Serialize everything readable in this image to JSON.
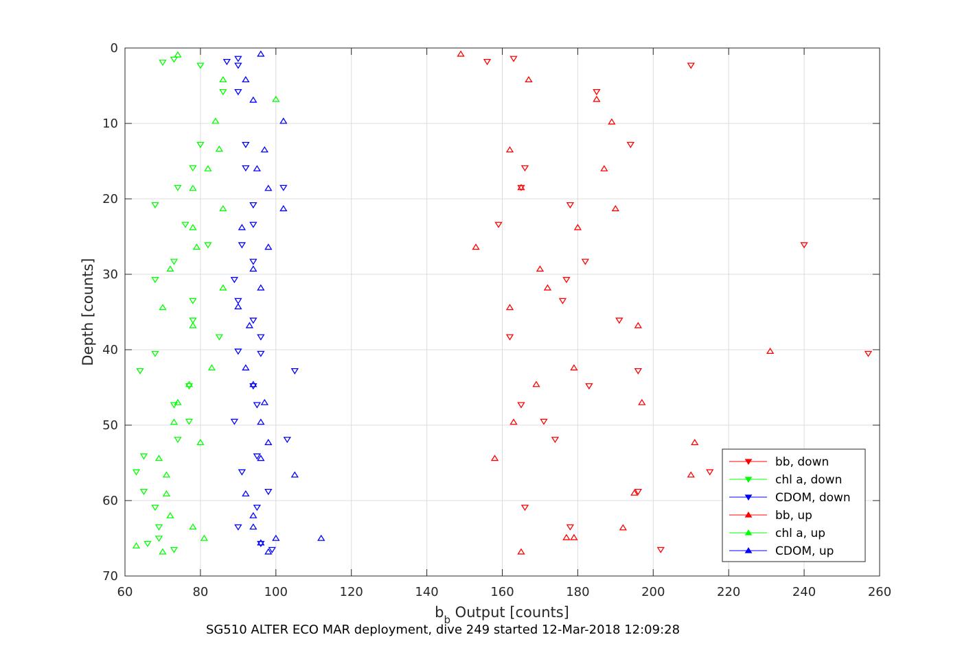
{
  "chart_data": {
    "type": "scatter",
    "title": "SG510 ALTER ECO MAR deployment, dive 249 started 12-Mar-2018 12:09:28",
    "xlabel_main": "b",
    "xlabel_sub": "b",
    "xlabel_rest": " Output [counts]",
    "ylabel": "Depth [counts]",
    "xlim": [
      60,
      260
    ],
    "ylim": [
      0,
      70
    ],
    "y_reversed": true,
    "grid": true,
    "legend_position": "bottom-right",
    "xticks": [
      "60",
      "80",
      "100",
      "120",
      "140",
      "160",
      "180",
      "200",
      "220",
      "240",
      "260"
    ],
    "yticks": [
      "0",
      "10",
      "20",
      "30",
      "40",
      "50",
      "60",
      "70"
    ],
    "series": [
      {
        "name": "bb, down",
        "color": "#ff0000",
        "marker": "triangle-down",
        "points": [
          [
            156,
            1.8
          ],
          [
            163,
            1.4
          ],
          [
            210,
            2.3
          ],
          [
            185,
            5.8
          ],
          [
            194,
            12.8
          ],
          [
            166,
            15.9
          ],
          [
            165,
            18.5
          ],
          [
            178,
            20.8
          ],
          [
            159,
            23.4
          ],
          [
            240,
            26.1
          ],
          [
            182,
            28.3
          ],
          [
            177,
            30.7
          ],
          [
            176,
            33.5
          ],
          [
            191,
            36.1
          ],
          [
            162,
            38.3
          ],
          [
            196,
            42.8
          ],
          [
            183,
            44.8
          ],
          [
            165,
            47.3
          ],
          [
            171,
            49.5
          ],
          [
            174,
            51.9
          ],
          [
            215,
            56.2
          ],
          [
            196,
            58.8
          ],
          [
            166,
            60.9
          ],
          [
            178,
            63.5
          ],
          [
            202,
            66.5
          ],
          [
            257,
            40.5
          ]
        ]
      },
      {
        "name": "chl a, down",
        "color": "#00ff00",
        "marker": "triangle-down",
        "points": [
          [
            70,
            1.9
          ],
          [
            73,
            1.5
          ],
          [
            80,
            2.3
          ],
          [
            86,
            5.8
          ],
          [
            80,
            12.8
          ],
          [
            78,
            15.9
          ],
          [
            74,
            18.5
          ],
          [
            68,
            20.8
          ],
          [
            76,
            23.4
          ],
          [
            82,
            26.1
          ],
          [
            73,
            28.3
          ],
          [
            68,
            30.7
          ],
          [
            78,
            33.5
          ],
          [
            78,
            36.1
          ],
          [
            85,
            38.3
          ],
          [
            68,
            40.5
          ],
          [
            64,
            42.8
          ],
          [
            77,
            44.8
          ],
          [
            73,
            47.3
          ],
          [
            77,
            49.5
          ],
          [
            74,
            51.9
          ],
          [
            65,
            54.1
          ],
          [
            63,
            56.2
          ],
          [
            65,
            58.8
          ],
          [
            68,
            60.9
          ],
          [
            69,
            63.5
          ],
          [
            69,
            65.0
          ],
          [
            73,
            66.5
          ],
          [
            66,
            65.7
          ]
        ]
      },
      {
        "name": "CDOM, down",
        "color": "#0000ff",
        "marker": "triangle-down",
        "points": [
          [
            87,
            1.8
          ],
          [
            90,
            1.4
          ],
          [
            90,
            2.3
          ],
          [
            90,
            5.8
          ],
          [
            92,
            12.8
          ],
          [
            92,
            15.9
          ],
          [
            102,
            18.5
          ],
          [
            94,
            20.8
          ],
          [
            94,
            23.4
          ],
          [
            91,
            26.1
          ],
          [
            94,
            28.3
          ],
          [
            89,
            30.7
          ],
          [
            90,
            33.5
          ],
          [
            94,
            36.1
          ],
          [
            96,
            38.3
          ],
          [
            90,
            40.2
          ],
          [
            96,
            40.5
          ],
          [
            105,
            42.8
          ],
          [
            94,
            44.8
          ],
          [
            95,
            47.3
          ],
          [
            89,
            49.5
          ],
          [
            103,
            51.9
          ],
          [
            95,
            54.1
          ],
          [
            91,
            56.2
          ],
          [
            98,
            58.8
          ],
          [
            95,
            60.9
          ],
          [
            90,
            63.5
          ],
          [
            96,
            65.7
          ],
          [
            99,
            66.5
          ]
        ]
      },
      {
        "name": "bb, up",
        "color": "#ff0000",
        "marker": "triangle-up",
        "points": [
          [
            149,
            0.8
          ],
          [
            167,
            4.2
          ],
          [
            185,
            6.8
          ],
          [
            189,
            9.8
          ],
          [
            162,
            13.5
          ],
          [
            187,
            16.0
          ],
          [
            165,
            18.5
          ],
          [
            190,
            21.3
          ],
          [
            180,
            23.8
          ],
          [
            153,
            26.4
          ],
          [
            170,
            29.3
          ],
          [
            172,
            31.8
          ],
          [
            162,
            34.4
          ],
          [
            196,
            36.8
          ],
          [
            231,
            40.2
          ],
          [
            179,
            42.4
          ],
          [
            169,
            44.6
          ],
          [
            197,
            47.0
          ],
          [
            163,
            49.6
          ],
          [
            211,
            52.3
          ],
          [
            158,
            54.4
          ],
          [
            210,
            56.6
          ],
          [
            195,
            59.0
          ],
          [
            192,
            63.6
          ],
          [
            177,
            64.9
          ],
          [
            179,
            64.9
          ],
          [
            165,
            66.8
          ]
        ]
      },
      {
        "name": "chl a, up",
        "color": "#00ff00",
        "marker": "triangle-up",
        "points": [
          [
            74,
            0.9
          ],
          [
            86,
            4.2
          ],
          [
            100,
            6.8
          ],
          [
            84,
            9.7
          ],
          [
            85,
            13.4
          ],
          [
            82,
            16.0
          ],
          [
            78,
            18.6
          ],
          [
            86,
            21.3
          ],
          [
            78,
            23.8
          ],
          [
            79,
            26.4
          ],
          [
            72,
            29.3
          ],
          [
            86,
            31.8
          ],
          [
            70,
            34.4
          ],
          [
            78,
            36.8
          ],
          [
            83,
            42.4
          ],
          [
            77,
            44.6
          ],
          [
            74,
            47.0
          ],
          [
            73,
            49.6
          ],
          [
            80,
            52.3
          ],
          [
            69,
            54.4
          ],
          [
            71,
            56.6
          ],
          [
            71,
            59.1
          ],
          [
            72,
            62.0
          ],
          [
            78,
            63.5
          ],
          [
            81,
            65.0
          ],
          [
            63,
            66.0
          ],
          [
            70,
            66.8
          ]
        ]
      },
      {
        "name": "CDOM, up",
        "color": "#0000ff",
        "marker": "triangle-up",
        "points": [
          [
            96,
            0.8
          ],
          [
            92,
            4.2
          ],
          [
            94,
            6.9
          ],
          [
            102,
            9.7
          ],
          [
            97,
            13.5
          ],
          [
            95,
            16.0
          ],
          [
            98,
            18.6
          ],
          [
            102,
            21.3
          ],
          [
            91,
            23.8
          ],
          [
            98,
            26.4
          ],
          [
            94,
            29.3
          ],
          [
            96,
            31.8
          ],
          [
            90,
            34.3
          ],
          [
            93,
            36.8
          ],
          [
            92,
            42.4
          ],
          [
            94,
            44.6
          ],
          [
            97,
            47.0
          ],
          [
            96,
            49.6
          ],
          [
            98,
            52.3
          ],
          [
            96,
            54.4
          ],
          [
            105,
            56.6
          ],
          [
            92,
            59.1
          ],
          [
            94,
            62.0
          ],
          [
            94,
            63.5
          ],
          [
            100,
            65.0
          ],
          [
            112,
            65.0
          ],
          [
            96,
            65.6
          ],
          [
            98,
            66.8
          ]
        ]
      }
    ]
  }
}
